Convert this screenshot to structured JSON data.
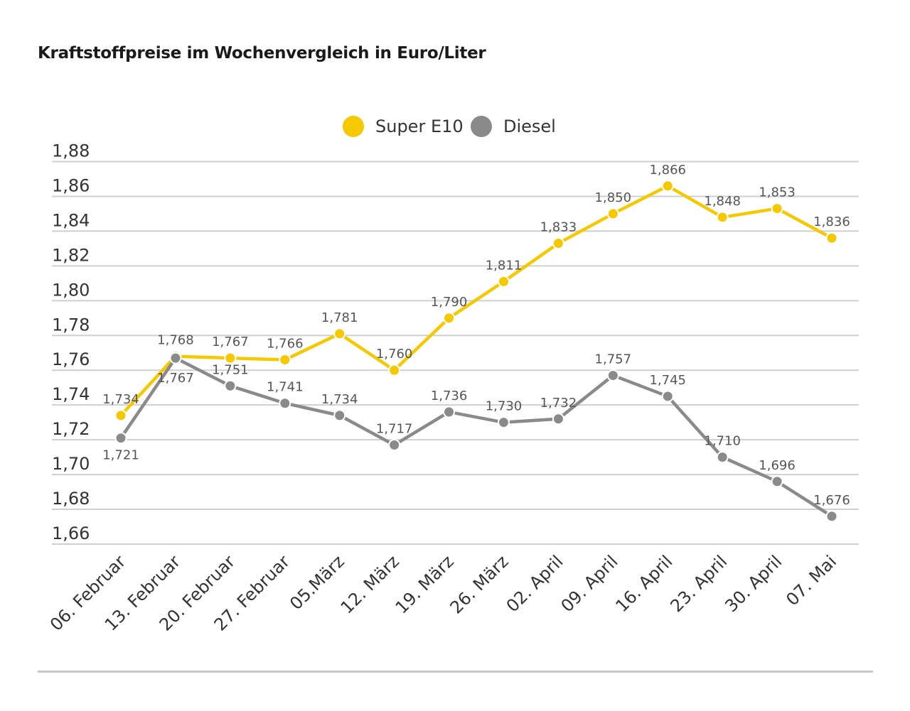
{
  "title": "Kraftstoffpreise im Wochenvergleich in Euro/Liter",
  "colors": {
    "super": "#f5c800",
    "diesel": "#8a8a8a",
    "grid": "#cfcfcf",
    "text": "#333333"
  },
  "chart_data": {
    "type": "line",
    "title": "Kraftstoffpreise im Wochenvergleich in Euro/Liter",
    "xlabel": "",
    "ylabel": "",
    "ylim": [
      1.66,
      1.88
    ],
    "yticks": [
      "1,88",
      "1,86",
      "1,84",
      "1,82",
      "1,80",
      "1,78",
      "1,76",
      "1,74",
      "1,72",
      "1,70",
      "1,68",
      "1,66"
    ],
    "grid": true,
    "legend_position": "top-center",
    "categories": [
      "06. Februar",
      "13. Februar",
      "20. Februar",
      "27. Februar",
      "05.März",
      "12. März",
      "19. März",
      "26. März",
      "02. April",
      "09. April",
      "16. April",
      "23. April",
      "30. April",
      "07. Mai"
    ],
    "series": [
      {
        "name": "Super E10",
        "values": [
          1.734,
          1.768,
          1.767,
          1.766,
          1.781,
          1.76,
          1.79,
          1.811,
          1.833,
          1.85,
          1.866,
          1.848,
          1.853,
          1.836
        ],
        "labels": [
          "1,734",
          "1,768",
          "1,767",
          "1,766",
          "1,781",
          "1,760",
          "1,790",
          "1,811",
          "1,833",
          "1,850",
          "1,866",
          "1,848",
          "1,853",
          "1,836"
        ]
      },
      {
        "name": "Diesel",
        "values": [
          1.721,
          1.767,
          1.751,
          1.741,
          1.734,
          1.717,
          1.736,
          1.73,
          1.732,
          1.757,
          1.745,
          1.71,
          1.696,
          1.676
        ],
        "labels": [
          "1,721",
          "1,767",
          "1,751",
          "1,741",
          "1,734",
          "1,717",
          "1,736",
          "1,730",
          "1,732",
          "1,757",
          "1,745",
          "1,710",
          "1,696",
          "1,676"
        ]
      }
    ]
  }
}
